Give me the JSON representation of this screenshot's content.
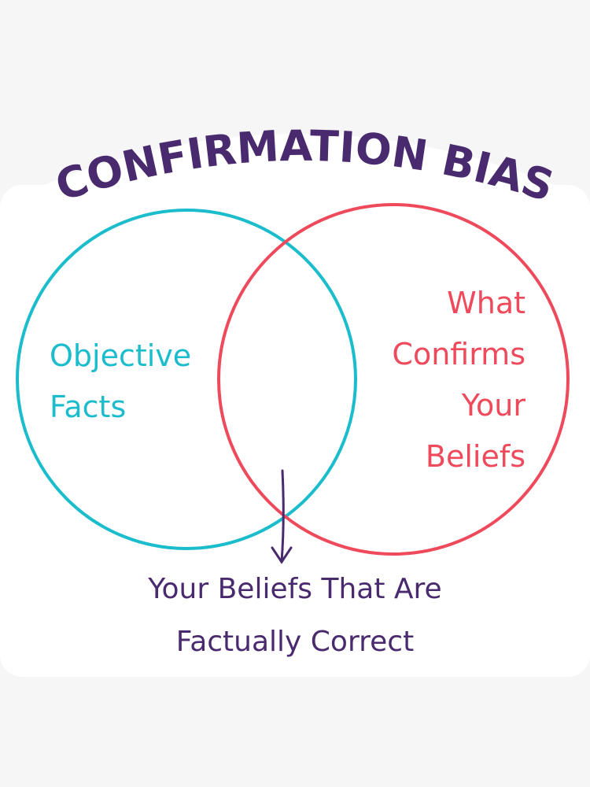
{
  "title": "CONFIRMATION BIAS",
  "colors": {
    "title": "#4a2a6e",
    "left_circle": "#1bbccc",
    "right_circle": "#ef4a5c",
    "caption": "#4a2a6e",
    "background": "#f6f6f6",
    "sticker": "#ffffff"
  },
  "left_set": {
    "lines": [
      "Objective",
      "Facts"
    ]
  },
  "right_set": {
    "lines": [
      "What",
      "Confirms",
      "Your",
      "Beliefs"
    ]
  },
  "intersection": {
    "lines": [
      "Your Beliefs That Are",
      "Factually Correct"
    ]
  },
  "arrow_icon": "arrow-down-icon"
}
